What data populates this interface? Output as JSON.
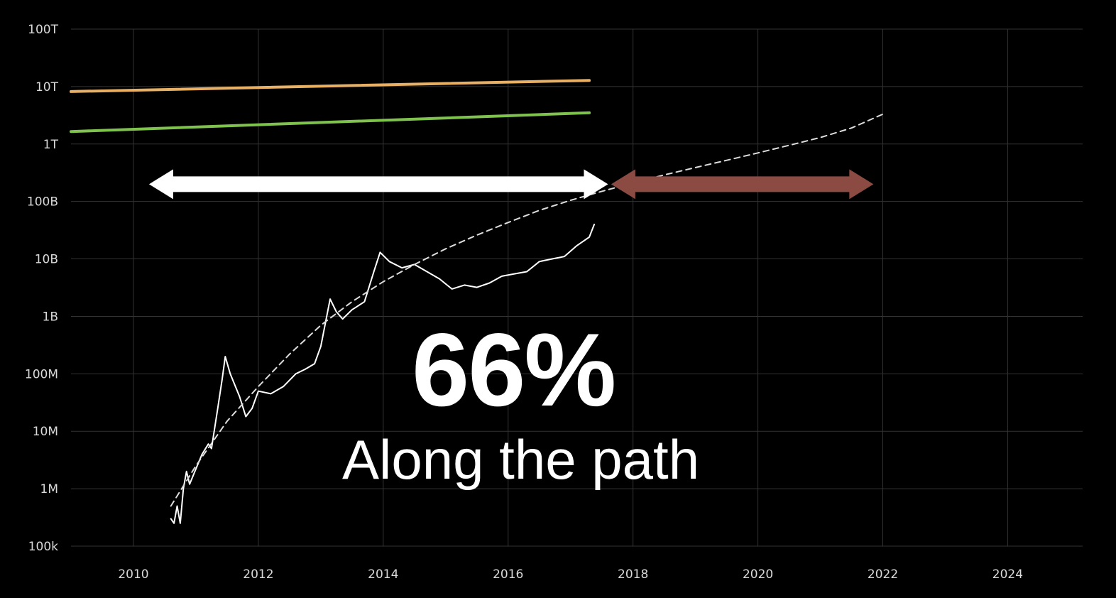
{
  "headline": {
    "percent": "66%",
    "caption": "Along the path"
  },
  "colors": {
    "background": "#000000",
    "grid": "#333333",
    "orange_line": "#e8b065",
    "green_line": "#7fc34e",
    "price_line": "#ffffff",
    "trend_line": "#dddddd",
    "arrow_past": "#ffffff",
    "arrow_future": "#8b4a42"
  },
  "chart_data": {
    "type": "line",
    "scale": {
      "y": "log"
    },
    "xlim": [
      2009,
      2025.2
    ],
    "ylim": [
      100000,
      100000000000000
    ],
    "x_ticks": [
      "2010",
      "2012",
      "2014",
      "2016",
      "2018",
      "2020",
      "2022",
      "2024"
    ],
    "y_ticks": [
      {
        "value": 100000,
        "label": "100k"
      },
      {
        "value": 1000000,
        "label": "1M"
      },
      {
        "value": 10000000,
        "label": "10M"
      },
      {
        "value": 100000000,
        "label": "100M"
      },
      {
        "value": 1000000000,
        "label": "1B"
      },
      {
        "value": 10000000000,
        "label": "10B"
      },
      {
        "value": 100000000000,
        "label": "100B"
      },
      {
        "value": 1000000000000,
        "label": "1T"
      },
      {
        "value": 10000000000000,
        "label": "10T"
      },
      {
        "value": 100000000000000,
        "label": "100T"
      }
    ],
    "grid": true,
    "series": [
      {
        "style": "orange",
        "x": [
          2009,
          2017.3
        ],
        "y": [
          8200000000000,
          12800000000000
        ]
      },
      {
        "style": "green",
        "x": [
          2009,
          2017.3
        ],
        "y": [
          1650000000000,
          3500000000000
        ]
      },
      {
        "style": "price",
        "x": [
          2010.6,
          2010.65,
          2010.7,
          2010.75,
          2010.8,
          2010.85,
          2010.9,
          2011.0,
          2011.1,
          2011.2,
          2011.25,
          2011.35,
          2011.42,
          2011.47,
          2011.55,
          2011.7,
          2011.8,
          2011.9,
          2012.0,
          2012.2,
          2012.4,
          2012.6,
          2012.75,
          2012.9,
          2013.0,
          2013.15,
          2013.25,
          2013.35,
          2013.5,
          2013.7,
          2013.85,
          2013.95,
          2014.1,
          2014.3,
          2014.5,
          2014.7,
          2014.9,
          2015.1,
          2015.3,
          2015.5,
          2015.7,
          2015.9,
          2016.1,
          2016.3,
          2016.5,
          2016.7,
          2016.9,
          2017.1,
          2017.3,
          2017.38
        ],
        "y": [
          300000,
          250000,
          500000,
          250000,
          1000000,
          2000000,
          1200000,
          2200000,
          4000000,
          6000000,
          5000000,
          25000000,
          80000000,
          200000000,
          100000000,
          40000000,
          18000000,
          25000000,
          50000000,
          45000000,
          60000000,
          100000000,
          120000000,
          150000000,
          300000000,
          2000000000,
          1200000000,
          900000000,
          1300000000,
          1800000000,
          6000000000,
          13000000000,
          9000000000,
          7000000000,
          8000000000,
          6000000000,
          4500000000,
          3000000000,
          3500000000,
          3200000000,
          3800000000,
          5000000000,
          5500000000,
          6000000000,
          9000000000,
          10000000000,
          11000000000,
          17000000000,
          24000000000,
          40000000000
        ]
      },
      {
        "style": "trend",
        "x": [
          2010.6,
          2011.0,
          2011.5,
          2012.0,
          2012.5,
          2013.0,
          2013.5,
          2014.0,
          2014.5,
          2015.0,
          2015.5,
          2016.0,
          2016.5,
          2017.0,
          2017.5,
          2018.0,
          2018.5,
          2019.0,
          2019.5,
          2020.0,
          2020.5,
          2021.0,
          2021.5,
          2022.0
        ],
        "y": [
          500000,
          2500000,
          15000000,
          60000000,
          220000000,
          700000000,
          1800000000,
          4000000000,
          8000000000,
          15000000000,
          26000000000,
          43000000000,
          70000000000,
          105000000000,
          150000000000,
          210000000000,
          290000000000,
          390000000000,
          520000000000,
          700000000000,
          950000000000,
          1300000000000,
          1900000000000,
          3300000000000
        ]
      }
    ],
    "arrows": [
      {
        "style": "past",
        "x_start": 2010.25,
        "x_end": 2017.6,
        "y": 200000000000
      },
      {
        "style": "future",
        "x_start": 2017.65,
        "x_end": 2021.85,
        "y": 200000000000
      }
    ]
  }
}
